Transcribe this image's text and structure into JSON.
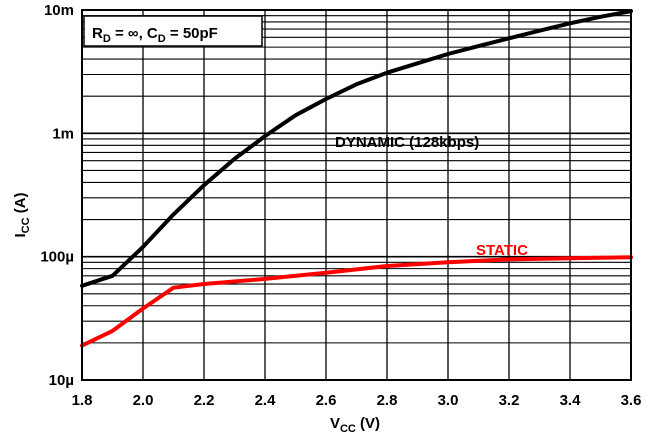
{
  "chart_data": {
    "type": "line",
    "title": "",
    "annotation": {
      "r_sym": "R",
      "r_sub": "D",
      "r_val": " = ∞, ",
      "c_sym": "C",
      "c_sub": "D",
      "c_val": " = 50pF"
    },
    "xlabel": {
      "main": "V",
      "sub": "CC",
      "unit": " (V)"
    },
    "ylabel": {
      "main": "I",
      "sub": "CC",
      "unit": " (A)"
    },
    "xlim": [
      1.8,
      3.6
    ],
    "ylim": [
      1e-05,
      0.01
    ],
    "yscale": "log",
    "grid": true,
    "x_ticks": [
      {
        "value": 1.8,
        "label": "1.8"
      },
      {
        "value": 2.0,
        "label": "2.0"
      },
      {
        "value": 2.2,
        "label": "2.2"
      },
      {
        "value": 2.4,
        "label": "2.4"
      },
      {
        "value": 2.6,
        "label": "2.6"
      },
      {
        "value": 2.8,
        "label": "2.8"
      },
      {
        "value": 3.0,
        "label": "3.0"
      },
      {
        "value": 3.2,
        "label": "3.2"
      },
      {
        "value": 3.4,
        "label": "3.4"
      },
      {
        "value": 3.6,
        "label": "3.6"
      }
    ],
    "y_ticks": [
      {
        "value": 1e-05,
        "label": "10µ"
      },
      {
        "value": 0.0001,
        "label": "100µ"
      },
      {
        "value": 0.001,
        "label": "1m"
      },
      {
        "value": 0.01,
        "label": "10m"
      }
    ],
    "series": [
      {
        "name": "DYNAMIC (128kbps)",
        "color": "#000000",
        "points": [
          [
            1.8,
            5.8e-05
          ],
          [
            1.9,
            7e-05
          ],
          [
            2.0,
            0.00012
          ],
          [
            2.1,
            0.00022
          ],
          [
            2.2,
            0.00038
          ],
          [
            2.3,
            0.00062
          ],
          [
            2.4,
            0.00095
          ],
          [
            2.5,
            0.0014
          ],
          [
            2.6,
            0.0019
          ],
          [
            2.7,
            0.0025
          ],
          [
            2.8,
            0.0031
          ],
          [
            2.9,
            0.0037
          ],
          [
            3.0,
            0.0044
          ],
          [
            3.1,
            0.0051
          ],
          [
            3.2,
            0.0059
          ],
          [
            3.3,
            0.0068
          ],
          [
            3.4,
            0.0078
          ],
          [
            3.5,
            0.0088
          ],
          [
            3.6,
            0.0098
          ]
        ]
      },
      {
        "name": "STATIC",
        "color": "#ff0000",
        "points": [
          [
            1.8,
            1.9e-05
          ],
          [
            1.9,
            2.5e-05
          ],
          [
            2.0,
            3.8e-05
          ],
          [
            2.1,
            5.6e-05
          ],
          [
            2.2,
            6e-05
          ],
          [
            2.4,
            6.6e-05
          ],
          [
            2.6,
            7.4e-05
          ],
          [
            2.8,
            8.4e-05
          ],
          [
            3.0,
            9e-05
          ],
          [
            3.2,
            9.5e-05
          ],
          [
            3.4,
            9.7e-05
          ],
          [
            3.6,
            9.9e-05
          ]
        ]
      }
    ],
    "colors": {
      "first_x_tick": "#cc0033",
      "static": "#ff0000",
      "dynamic": "#000000"
    }
  }
}
